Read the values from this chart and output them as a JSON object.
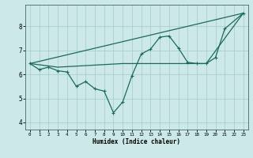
{
  "bg_color": "#cce8e8",
  "grid_color": "#aacfcf",
  "line_color": "#1a6b5a",
  "xlabel": "Humidex (Indice chaleur)",
  "ylim": [
    3.7,
    8.9
  ],
  "xlim": [
    -0.5,
    23.5
  ],
  "yticks": [
    4,
    5,
    6,
    7,
    8
  ],
  "xticks": [
    0,
    1,
    2,
    3,
    4,
    5,
    6,
    7,
    8,
    9,
    10,
    11,
    12,
    13,
    14,
    15,
    16,
    17,
    18,
    19,
    20,
    21,
    22,
    23
  ],
  "line1_x": [
    0,
    1,
    2,
    3,
    4,
    5,
    6,
    7,
    8,
    9,
    10,
    11,
    12,
    13,
    14,
    15,
    16,
    17,
    18,
    19,
    20,
    21,
    23
  ],
  "line1_y": [
    6.45,
    6.2,
    6.3,
    6.15,
    6.1,
    5.5,
    5.7,
    5.4,
    5.3,
    4.4,
    4.85,
    5.95,
    6.85,
    7.05,
    7.55,
    7.6,
    7.1,
    6.5,
    6.45,
    6.45,
    6.7,
    7.9,
    8.55
  ],
  "line2_x": [
    0,
    3,
    10,
    19,
    23
  ],
  "line2_y": [
    6.45,
    6.3,
    6.45,
    6.45,
    8.55
  ],
  "line3_x": [
    0,
    23
  ],
  "line3_y": [
    6.45,
    8.55
  ]
}
